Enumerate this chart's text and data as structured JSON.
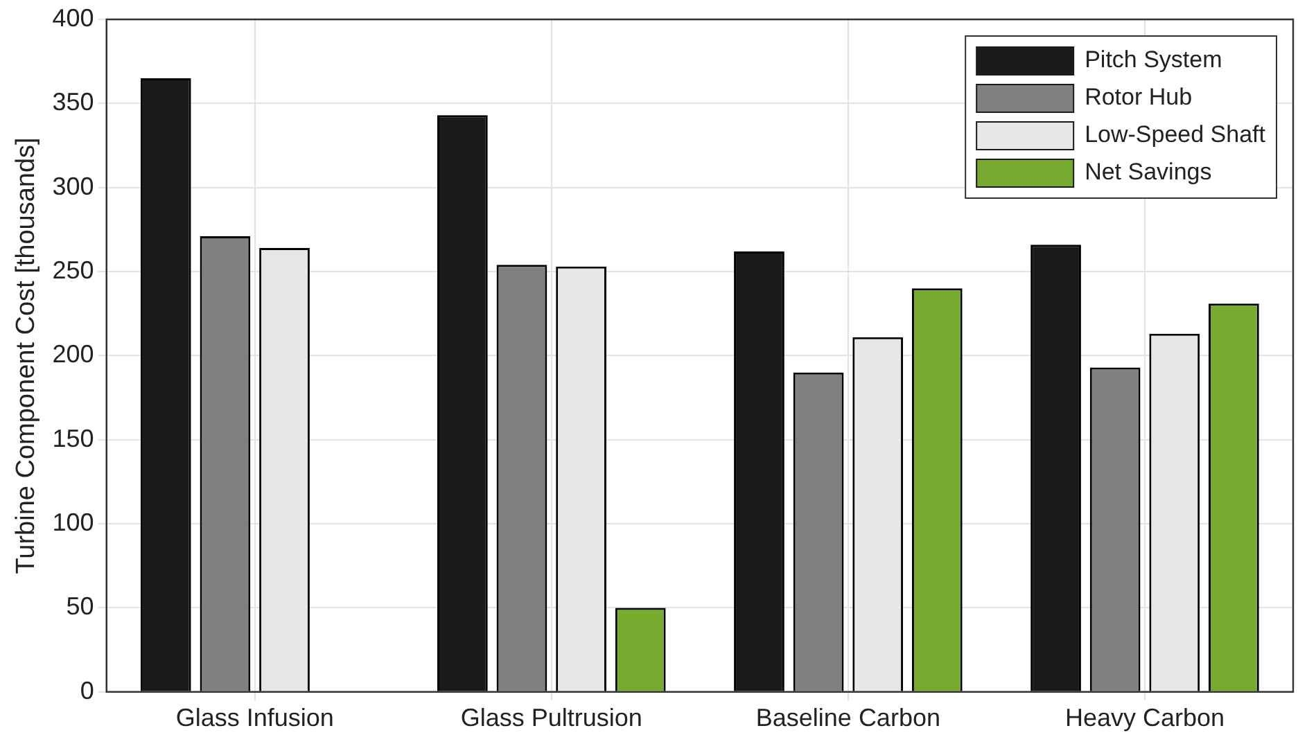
{
  "chart_data": {
    "type": "bar",
    "ylabel": "Turbine Component Cost [thousands]",
    "categories": [
      "Glass Infusion",
      "Glass Pultrusion",
      "Baseline Carbon",
      "Heavy Carbon"
    ],
    "series": [
      {
        "name": "Pitch System",
        "color": "#1a1a1a",
        "values": [
          365,
          343,
          262,
          266
        ]
      },
      {
        "name": "Rotor Hub",
        "color": "#808080",
        "values": [
          271,
          254,
          190,
          193
        ]
      },
      {
        "name": "Low-Speed Shaft",
        "color": "#e6e6e6",
        "values": [
          264,
          253,
          211,
          213
        ]
      },
      {
        "name": "Net Savings",
        "color": "#77ab2f",
        "values": [
          null,
          50,
          240,
          231
        ]
      }
    ],
    "ylim": [
      0,
      400
    ],
    "yticks": [
      0,
      50,
      100,
      150,
      200,
      250,
      300,
      350,
      400
    ],
    "grid": true,
    "legend": "top right"
  }
}
